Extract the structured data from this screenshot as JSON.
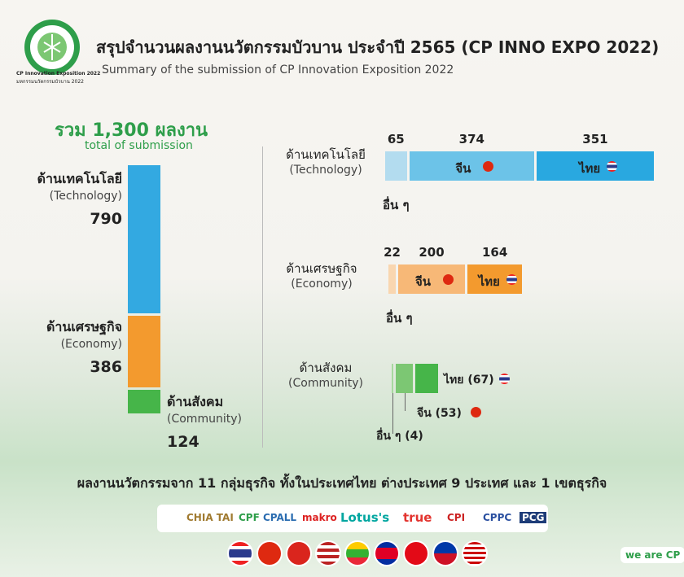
{
  "logo": {
    "caption": "CP Innovation Exposition 2022",
    "caption_th": "มหกรรมนวัตกรรมบัวบาน 2022"
  },
  "header": {
    "title": "สรุปจำนวนผลงานนวัตกรรมบัวบาน ประจำปี 2565 (CP INNO EXPO 2022)",
    "subtitle": "Summary of the submission of CP Innovation Exposition 2022"
  },
  "total": {
    "label": "รวม 1,300 ผลงาน",
    "sublabel": "total of submission"
  },
  "categories": [
    {
      "name_th": "ด้านเทคโนโลยี",
      "name_en": "(Technology)",
      "total": 790,
      "color": "#33a9e1",
      "segments": [
        {
          "name": "อื่น ๆ",
          "value": 65,
          "color": "#b3dcef"
        },
        {
          "name": "จีน",
          "value": 374,
          "color": "#6cc3e8"
        },
        {
          "name": "ไทย",
          "value": 351,
          "color": "#29a8e0"
        }
      ]
    },
    {
      "name_th": "ด้านเศรษฐกิจ",
      "name_en": "(Economy)",
      "total": 386,
      "color": "#f39a2e",
      "segments": [
        {
          "name": "อื่น ๆ",
          "value": 22,
          "color": "#f9d6b0"
        },
        {
          "name": "จีน",
          "value": 200,
          "color": "#f7b877"
        },
        {
          "name": "ไทย",
          "value": 164,
          "color": "#f39a2e"
        }
      ]
    },
    {
      "name_th": "ด้านสังคม",
      "name_en": "(Community)",
      "total": 124,
      "color": "#46b549",
      "segments": [
        {
          "value": 4,
          "value_label": "อื่น ๆ (4)",
          "color": "#a8d8a0"
        },
        {
          "value": 53,
          "value_label": "จีน (53)",
          "color": "#7cc773"
        },
        {
          "value": 67,
          "value_label": "ไทย (67)",
          "color": "#46b549"
        }
      ]
    }
  ],
  "footer": {
    "text": "ผลงานนวัตกรรมจาก 11 กลุ่มธุรกิจ ทั้งในประเทศไทย ต่างประเทศ 9 ประเทศ และ 1 เขตธุรกิจ",
    "brands": [
      "CHIA TAI",
      "CPF",
      "CPALL",
      "makro",
      "Lotus's",
      "true",
      "CPI",
      "CPPC",
      "PCG"
    ],
    "badge": "we are CP"
  }
}
